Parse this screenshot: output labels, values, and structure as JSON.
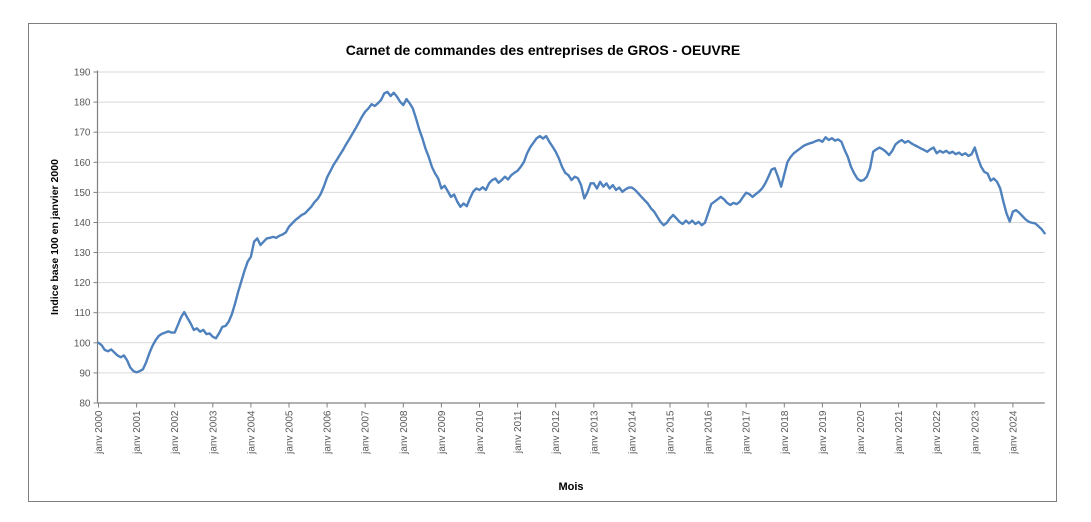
{
  "chart_data": {
    "type": "line",
    "title": "Carnet de commandes des entreprises de GROS - OEUVRE",
    "xlabel": "Mois",
    "ylabel": "Indice base 100 en janvier 2000",
    "ylim": [
      80,
      190
    ],
    "y_ticks": [
      80,
      90,
      100,
      110,
      120,
      130,
      140,
      150,
      160,
      170,
      180,
      190
    ],
    "x_tick_labels": [
      "janv 2000",
      "janv 2001",
      "janv 2002",
      "janv 2003",
      "janv 2004",
      "janv 2005",
      "janv 2006",
      "janv 2007",
      "janv 2008",
      "janv 2009",
      "janv 2010",
      "janv 2011",
      "janv 2012",
      "janv 2013",
      "janv 2014",
      "janv 2015",
      "janv 2016",
      "janv 2017",
      "janv 2018",
      "janv 2019",
      "janv 2020",
      "janv 2021",
      "janv 2022",
      "janv 2023",
      "janv 2024"
    ],
    "x_start_label": "janv 2000",
    "points_per_year": 12,
    "grid": true,
    "legend": "none",
    "line_color": "#4F81BD",
    "grid_color": "#D9D9D9",
    "axis_color": "#808080",
    "tick_label_color": "#595959",
    "values": [
      100.0,
      99.2,
      97.6,
      97.2,
      97.8,
      96.8,
      95.8,
      95.2,
      95.8,
      94.2,
      91.8,
      90.6,
      90.2,
      90.6,
      91.2,
      93.5,
      96.5,
      99.0,
      100.9,
      102.3,
      103.0,
      103.4,
      103.8,
      103.4,
      103.4,
      105.9,
      108.5,
      110.2,
      108.3,
      106.5,
      104.3,
      104.8,
      103.7,
      104.3,
      102.9,
      103.1,
      102.0,
      101.5,
      103.2,
      105.3,
      105.6,
      107.0,
      109.5,
      113.0,
      117.0,
      120.5,
      124.0,
      127.0,
      128.6,
      133.6,
      134.7,
      132.5,
      133.6,
      134.7,
      134.9,
      135.2,
      134.9,
      135.6,
      136.0,
      136.7,
      138.6,
      139.7,
      140.8,
      141.6,
      142.5,
      143.0,
      144.1,
      145.2,
      146.7,
      147.8,
      149.5,
      152.0,
      155.0,
      157.0,
      159.1,
      160.7,
      162.4,
      164.1,
      166.0,
      167.7,
      169.5,
      171.3,
      173.2,
      175.2,
      176.8,
      177.9,
      179.3,
      178.7,
      179.6,
      180.7,
      182.9,
      183.4,
      182.0,
      183.1,
      181.8,
      180.1,
      179.0,
      181.0,
      179.6,
      177.9,
      174.6,
      171.0,
      168.0,
      164.5,
      161.8,
      158.5,
      156.3,
      154.6,
      151.3,
      152.2,
      150.4,
      148.5,
      149.3,
      146.9,
      145.2,
      146.3,
      145.4,
      148.0,
      150.2,
      151.3,
      150.8,
      151.7,
      150.8,
      153.0,
      154.1,
      154.6,
      153.2,
      154.1,
      155.2,
      154.3,
      155.7,
      156.5,
      157.2,
      158.5,
      160.1,
      163.0,
      165.0,
      166.5,
      168.0,
      168.7,
      167.9,
      168.7,
      166.8,
      165.2,
      163.5,
      161.3,
      158.5,
      156.5,
      155.7,
      154.1,
      155.2,
      154.7,
      152.4,
      148.0,
      150.0,
      153.0,
      153.0,
      151.3,
      153.5,
      151.9,
      153.0,
      151.3,
      152.4,
      150.8,
      151.6,
      150.2,
      151.0,
      151.6,
      151.6,
      150.8,
      149.7,
      148.5,
      147.4,
      146.3,
      144.7,
      143.6,
      141.9,
      140.2,
      139.1,
      139.9,
      141.4,
      142.5,
      141.4,
      140.2,
      139.5,
      140.6,
      139.7,
      140.6,
      139.5,
      140.2,
      139.1,
      139.9,
      143.0,
      146.1,
      146.9,
      147.7,
      148.5,
      147.7,
      146.5,
      145.8,
      146.5,
      146.1,
      146.9,
      148.5,
      149.9,
      149.4,
      148.5,
      149.4,
      150.2,
      151.3,
      153.0,
      155.2,
      157.6,
      158.0,
      155.2,
      151.9,
      156.0,
      160.1,
      161.8,
      163.0,
      163.8,
      164.6,
      165.4,
      165.9,
      166.3,
      166.6,
      167.1,
      167.4,
      166.8,
      168.3,
      167.4,
      168.0,
      167.2,
      167.6,
      166.8,
      164.1,
      161.8,
      158.5,
      156.3,
      154.6,
      153.8,
      154.1,
      155.2,
      158.0,
      163.5,
      164.3,
      164.9,
      164.3,
      163.5,
      162.4,
      163.8,
      165.9,
      166.8,
      167.4,
      166.5,
      167.1,
      166.3,
      165.7,
      165.2,
      164.6,
      164.1,
      163.5,
      164.3,
      164.9,
      163.0,
      163.8,
      163.2,
      163.8,
      163.0,
      163.5,
      162.7,
      163.2,
      162.4,
      163.0,
      162.1,
      162.7,
      164.9,
      161.3,
      158.5,
      156.8,
      156.3,
      153.9,
      154.6,
      153.5,
      151.3,
      146.9,
      143.0,
      140.3,
      143.6,
      144.1,
      143.2,
      142.1,
      141.0,
      140.2,
      139.9,
      139.7,
      138.8,
      137.8,
      136.4
    ]
  }
}
